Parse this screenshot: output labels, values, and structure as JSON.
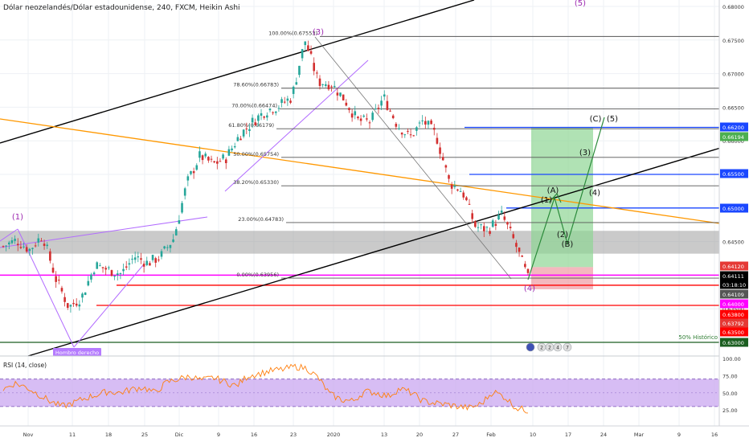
{
  "header": {
    "title": "Dólar neozelandés/Dólar estadounidense, 240, FXCM, Heikin Ashi"
  },
  "colors": {
    "up": "#26a69a",
    "down": "#d32f2f",
    "fib_line": "#555555",
    "support_red": "#ff0000",
    "support_blue": "#1a47ff",
    "trend_orange": "#ff9800",
    "trend_black": "#000000",
    "purple": "#b26cff",
    "magenta": "#ff00ff",
    "rsi_line": "#ff7f0e",
    "rsi_band": "#c9a7f0",
    "target_zone": "#8fd694",
    "stop_zone": "#f0a0a8",
    "gray_zone": "#9e9e9e",
    "wave_label": "#9c27b0"
  },
  "chart_data": {
    "type": "candlestick",
    "symbol": "NZDUSD",
    "timeframe": "240",
    "price_axis": {
      "ticks": [
        "0.68000",
        "0.67500",
        "0.67000",
        "0.66500",
        "0.66000",
        "0.65500",
        "0.65000",
        "0.64500",
        "0.64000",
        "0.63500",
        "0.63000"
      ]
    },
    "price_badges": [
      {
        "label": "0.66200",
        "color": "#1a47ff"
      },
      {
        "label": "0.66194",
        "color": "#4caf50"
      },
      {
        "label": "0.65500",
        "color": "#1a47ff"
      },
      {
        "label": "0.65000",
        "color": "#1a47ff"
      },
      {
        "label": "0.64120",
        "color": "#e53935"
      },
      {
        "label": "0.64111",
        "color": "#000000"
      },
      {
        "label": "03:18:10",
        "color": "#000000"
      },
      {
        "label": "0.64109",
        "color": "#555555"
      },
      {
        "label": "0.64000",
        "color": "#ff00ff"
      },
      {
        "label": "0.63800",
        "color": "#ff0000"
      },
      {
        "label": "0.63792",
        "color": "#e53935"
      },
      {
        "label": "0.63500",
        "color": "#ff0000"
      },
      {
        "label": "0.63000",
        "color": "#1b5e20"
      }
    ],
    "x_axis": {
      "ticks": [
        "Nov",
        "11",
        "18",
        "25",
        "Dic",
        "9",
        "16",
        "23",
        "2020",
        "13",
        "20",
        "27",
        "Feb",
        "10",
        "17",
        "24",
        "Mar",
        "9",
        "16"
      ]
    },
    "fibonacci": [
      {
        "label": "100.00%(0.67553)",
        "price": 0.67553
      },
      {
        "label": "78.60%(0.66783)",
        "price": 0.66783
      },
      {
        "label": "70.00%(0.66474)",
        "price": 0.66474
      },
      {
        "label": "61.80%(0.66179)",
        "price": 0.66179
      },
      {
        "label": "50.00%(0.65754)",
        "price": 0.65754
      },
      {
        "label": "38.20%(0.65330)",
        "price": 0.6533
      },
      {
        "label": "23.00%(0.64783)",
        "price": 0.64783
      },
      {
        "label": "0.00%(0.63956)",
        "price": 0.63956
      }
    ],
    "horizontal_levels": [
      {
        "price": 0.662,
        "color": "blue"
      },
      {
        "price": 0.655,
        "color": "blue"
      },
      {
        "price": 0.65,
        "color": "blue"
      },
      {
        "price": 0.64,
        "color": "magenta"
      },
      {
        "price": 0.638,
        "color": "red"
      },
      {
        "price": 0.635,
        "color": "red"
      },
      {
        "price": 0.63,
        "color": "darkgreen"
      }
    ],
    "zones": [
      {
        "name": "resistance",
        "from": 0.6432,
        "to": 0.6466
      },
      {
        "name": "target",
        "from": 0.6412,
        "to": 0.662
      },
      {
        "name": "stop",
        "from": 0.6379,
        "to": 0.6412
      }
    ],
    "wave_labels": [
      "(3)",
      "(5)",
      "(1)",
      "(4)",
      "(A)",
      "(B)",
      "(C)",
      "(1)",
      "(2)",
      "(3)",
      "(4)",
      "(5)"
    ],
    "annotations": {
      "head_shoulder": "Hombro derecho",
      "historic": "50% Histórico"
    },
    "price_series": [
      0.6443,
      0.6452,
      0.6438,
      0.646,
      0.6395,
      0.6352,
      0.6368,
      0.6415,
      0.6408,
      0.6402,
      0.6428,
      0.6418,
      0.6428,
      0.6455,
      0.6537,
      0.6578,
      0.6565,
      0.6575,
      0.6608,
      0.6628,
      0.6645,
      0.6652,
      0.6665,
      0.675,
      0.6688,
      0.6685,
      0.6662,
      0.663,
      0.6628,
      0.6665,
      0.6625,
      0.6605,
      0.663,
      0.6608,
      0.6538,
      0.6525,
      0.6472,
      0.6468,
      0.649,
      0.6448,
      0.6395
    ],
    "rsi": {
      "title": "RSI (14, close)",
      "ticks": [
        "100.00",
        "75.00",
        "50.00",
        "25.00"
      ],
      "band": [
        30,
        70
      ],
      "series": [
        55,
        64,
        58,
        48,
        38,
        30,
        35,
        42,
        47,
        52,
        50,
        55,
        58,
        50,
        65,
        70,
        74,
        68,
        72,
        66,
        60,
        75,
        78,
        82,
        84,
        88,
        86,
        72,
        48,
        40,
        38,
        52,
        50,
        45,
        56,
        50,
        38,
        35,
        33,
        30,
        28,
        34,
        52,
        44,
        28,
        24
      ]
    }
  },
  "pane_tools": [
    "globe-icon",
    "news-icon",
    "calendar-icon",
    "flag-icon"
  ]
}
